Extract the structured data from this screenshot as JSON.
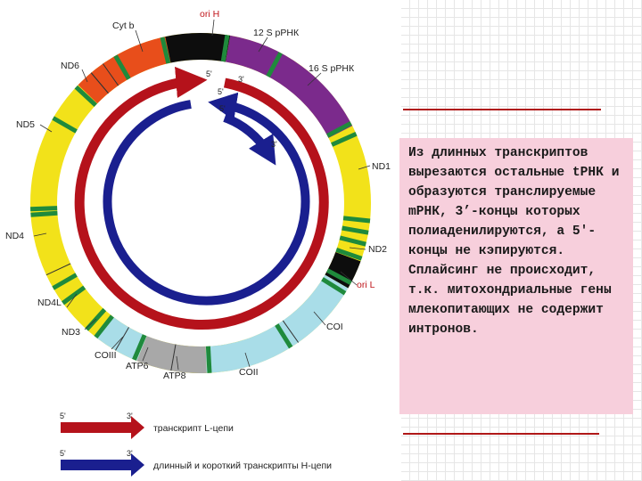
{
  "diagram": {
    "labels": {
      "cytb": "Cyt b",
      "ori_h": "ori H",
      "rrna12": "12 S рРНК",
      "rrna16": "16 S рРНК",
      "nd1": "ND1",
      "nd2": "ND2",
      "ori_l": "ori L",
      "coi": "COI",
      "coii": "COII",
      "atp8": "ATP8",
      "atp6": "ATP6",
      "coiii": "COIII",
      "nd3": "ND3",
      "nd4l": "ND4L",
      "nd4": "ND4",
      "nd5": "ND5",
      "nd6": "ND6"
    },
    "arrow_ends": {
      "red_5": "5'",
      "red_3": "3'",
      "blue_5a": "5'",
      "blue_5b": "5'",
      "blue_3": "3'"
    },
    "colors": {
      "nd_genes": "#f2e21a",
      "cytb": "#e84e1b",
      "rrna": "#7b2a8c",
      "co_genes": "#a9dde8",
      "atp_genes": "#a8a8a8",
      "trna": "#1f8a3c",
      "ori_h": "#0d0d0d",
      "l_transcript": "#b5121b",
      "h_transcript": "#1a1f8f"
    }
  },
  "legend": {
    "l_strand": {
      "five_prime": "5'",
      "three_prime": "3'",
      "label": "транскрипт L-цепи"
    },
    "h_strand": {
      "five_prime": "5'",
      "three_prime": "3'",
      "label": "длинный и короткий транскрипты H-цепи"
    }
  },
  "textbox": {
    "text": "Из длинных транскриптов вырезаются остальные tРНК и образуются транслируемые mРНК, 3’-концы которых полиаденилируются, а 5'-концы не кэпируются. Сплайсинг не происходит, т.к. митохондриальные гены млекопитающих не содержит интронов."
  }
}
